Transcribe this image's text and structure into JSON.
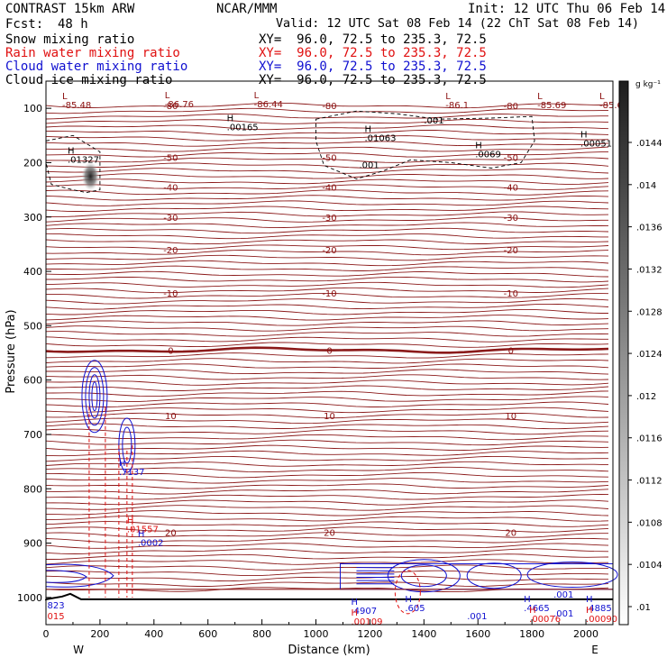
{
  "header": {
    "title": "CONTRAST 15km ARW",
    "fcst_label": "Fcst:",
    "fcst_value": "48 h",
    "center": "NCAR/MMM",
    "init": "Init: 12 UTC Thu 06 Feb 14",
    "valid": "Valid: 12 UTC Sat 08 Feb 14 (22 ChT Sat 08 Feb 14)"
  },
  "fields": [
    {
      "name": "Snow mixing ratio",
      "xy": "XY=  96.0, 72.5 to 235.3, 72.5",
      "color": "#000000"
    },
    {
      "name": "Rain water mixing ratio",
      "xy": "XY=  96.0, 72.5 to 235.3, 72.5",
      "color": "#e01010"
    },
    {
      "name": "Cloud water mixing ratio",
      "xy": "XY=  96.0, 72.5 to 235.3, 72.5",
      "color": "#1010d0"
    },
    {
      "name": "Cloud ice mixing ratio",
      "xy": "XY=  96.0, 72.5 to 235.3, 72.5",
      "color": "#000000"
    }
  ],
  "chart_data": {
    "type": "contour",
    "xlabel": "Distance (km)",
    "ylabel": "Pressure (hPa)",
    "xlim": [
      0,
      2100
    ],
    "ylim": [
      1050,
      50
    ],
    "x_ticks": [
      "0",
      "200",
      "400",
      "600",
      "800",
      "1000",
      "1200",
      "1400",
      "1600",
      "1800",
      "2000"
    ],
    "y_ticks": [
      "100",
      "200",
      "300",
      "400",
      "500",
      "600",
      "700",
      "800",
      "900",
      "1000"
    ],
    "x_end_labels": {
      "left": "W",
      "right": "E"
    },
    "colorbar": {
      "unit": "g kg⁻¹",
      "ticks": [
        ".0144",
        ".014",
        ".0136",
        ".0132",
        ".0128",
        ".0124",
        ".012",
        ".0116",
        ".0112",
        ".0108",
        ".0104",
        ".01"
      ]
    },
    "temperature_contours": [
      {
        "p": 95,
        "label": "-80"
      },
      {
        "p": 190,
        "label": "-50"
      },
      {
        "p": 245,
        "label": "-40"
      },
      {
        "p": 300,
        "label": "-30"
      },
      {
        "p": 360,
        "label": "-20"
      },
      {
        "p": 440,
        "label": "-10"
      },
      {
        "p": 545,
        "label": "0"
      },
      {
        "p": 665,
        "label": "10"
      },
      {
        "p": 880,
        "label": "20"
      }
    ],
    "extrema_labels": [
      {
        "kind": "L",
        "value": "-85.48",
        "x": 60,
        "p": 100,
        "color": "#8b1010"
      },
      {
        "kind": "L",
        "value": "-86.76",
        "x": 440,
        "p": 98,
        "color": "#8b1010"
      },
      {
        "kind": "L",
        "value": "-86.44",
        "x": 770,
        "p": 98,
        "color": "#8b1010"
      },
      {
        "kind": "L",
        "value": "-86.1",
        "x": 1480,
        "p": 100,
        "color": "#8b1010"
      },
      {
        "kind": "L",
        "value": "-85.69",
        "x": 1820,
        "p": 100,
        "color": "#8b1010"
      },
      {
        "kind": "L",
        "value": "-85.6",
        "x": 2050,
        "p": 100,
        "color": "#8b1010"
      },
      {
        "kind": "H",
        "value": ".00165",
        "x": 670,
        "p": 140,
        "color": "#000000"
      },
      {
        "kind": "H",
        "value": ".01063",
        "x": 1180,
        "p": 160,
        "color": "#000000"
      },
      {
        "kind": "H",
        "value": ".0069",
        "x": 1590,
        "p": 190,
        "color": "#000000"
      },
      {
        "kind": "H",
        "value": ".00051",
        "x": 1980,
        "p": 170,
        "color": "#000000"
      },
      {
        "kind": "H",
        "value": ".01327",
        "x": 80,
        "p": 200,
        "color": "#000000"
      },
      {
        "kind": "H",
        "value": ".7137",
        "x": 270,
        "p": 775,
        "color": "#1010d0"
      },
      {
        "kind": "H",
        "value": ".01557",
        "x": 300,
        "p": 880,
        "color": "#e01010"
      },
      {
        "kind": "H",
        "value": ".0002",
        "x": 340,
        "p": 905,
        "color": "#1010d0"
      },
      {
        "kind": "H",
        "value": ".4907",
        "x": 1130,
        "p": 1030,
        "color": "#1010d0"
      },
      {
        "kind": "H",
        "value": ".00109",
        "x": 1130,
        "p": 1050,
        "color": "#e01010"
      },
      {
        "kind": "H",
        "value": ".605",
        "x": 1330,
        "p": 1025,
        "color": "#1010d0"
      },
      {
        "kind": "H",
        "value": ".4665",
        "x": 1770,
        "p": 1025,
        "color": "#1010d0"
      },
      {
        "kind": "H",
        "value": ".00076",
        "x": 1790,
        "p": 1045,
        "color": "#e01010"
      },
      {
        "kind": "H",
        "value": ".4885",
        "x": 2000,
        "p": 1025,
        "color": "#1010d0"
      },
      {
        "kind": "H",
        "value": ".00090",
        "x": 2000,
        "p": 1045,
        "color": "#e01010"
      }
    ],
    "small_labels": [
      {
        "text": ".001",
        "x": 1400,
        "p": 128,
        "color": "#000000"
      },
      {
        "text": ".001",
        "x": 1160,
        "p": 210,
        "color": "#000000"
      },
      {
        "text": ".001",
        "x": 1560,
        "p": 1040,
        "color": "#1010d0"
      },
      {
        "text": ".001",
        "x": 1880,
        "p": 1035,
        "color": "#1010d0"
      },
      {
        "text": ".001",
        "x": 1880,
        "p": 1000,
        "color": "#1010d0"
      },
      {
        "text": "823",
        "x": 5,
        "p": 1020,
        "color": "#1010d0"
      },
      {
        "text": "015",
        "x": 5,
        "p": 1040,
        "color": "#e01010"
      }
    ]
  }
}
